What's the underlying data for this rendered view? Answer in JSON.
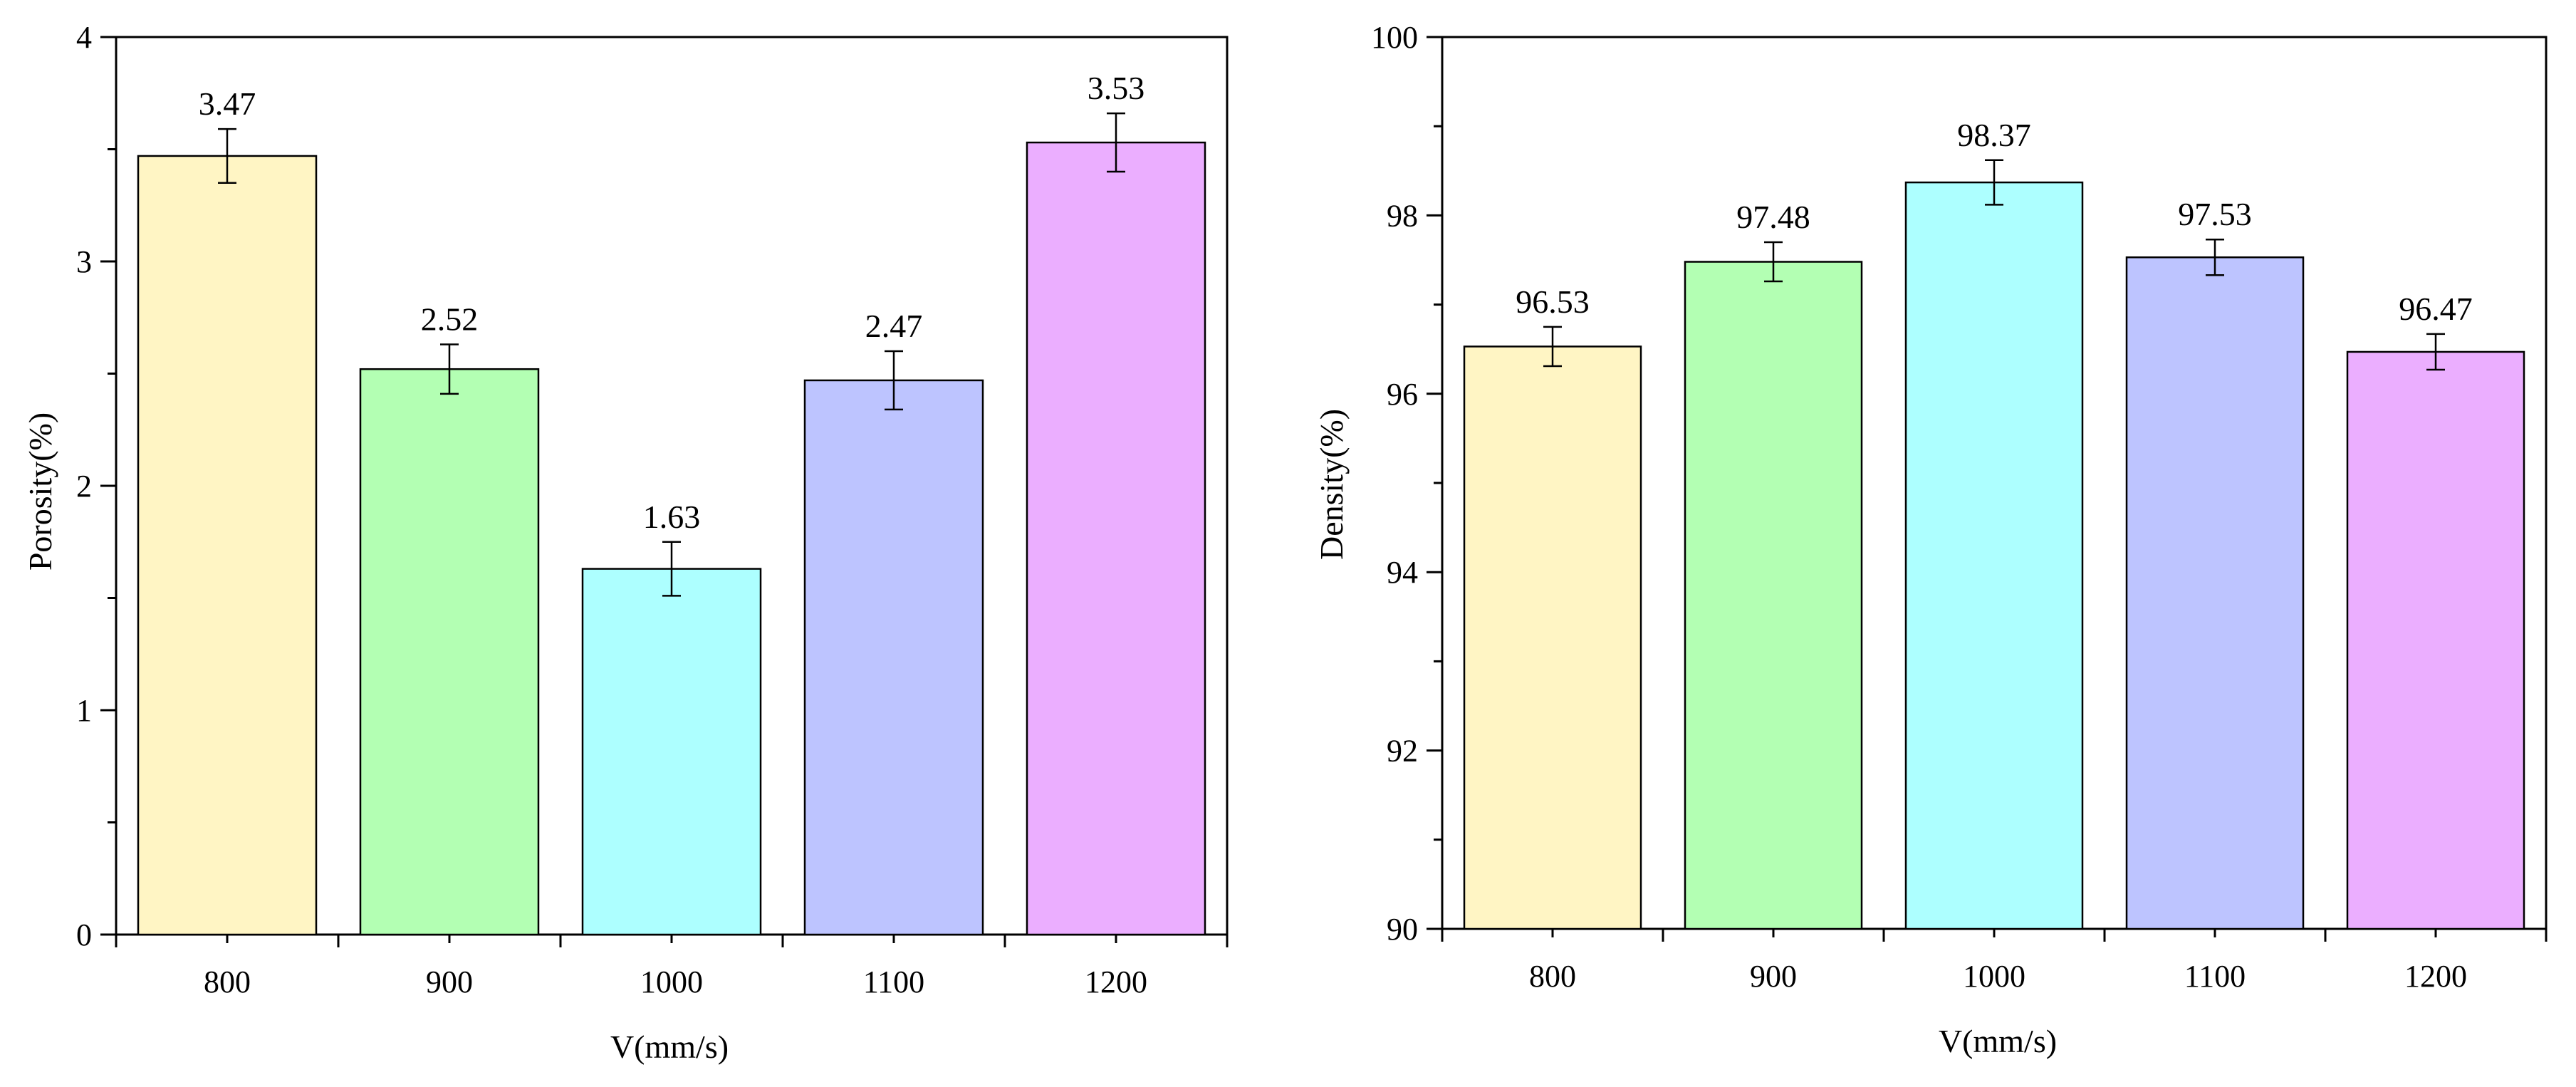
{
  "chart_data": [
    {
      "type": "bar",
      "title": "",
      "xlabel": "V(mm/s)",
      "ylabel": "Porosity(%)",
      "categories": [
        "800",
        "900",
        "1000",
        "1100",
        "1200"
      ],
      "values": [
        3.47,
        2.52,
        1.63,
        2.47,
        3.53
      ],
      "value_labels": [
        "3.47",
        "2.52",
        "1.63",
        "2.47",
        "3.53"
      ],
      "errors": [
        0.12,
        0.11,
        0.12,
        0.13,
        0.13
      ],
      "colors": [
        "#FFF5C4",
        "#B3FFB3",
        "#ADFFFF",
        "#BDC4FF",
        "#EBAEFF"
      ],
      "ylim": [
        0,
        4
      ],
      "major_ticks": [
        0,
        1,
        2,
        3,
        4
      ],
      "tick_labels": [
        "0",
        "1",
        "2",
        "3",
        "4"
      ],
      "minor_step": 0.5,
      "grid": false,
      "legend": "none"
    },
    {
      "type": "bar",
      "title": "",
      "xlabel": "V(mm/s)",
      "ylabel": "Density(%)",
      "categories": [
        "800",
        "900",
        "1000",
        "1100",
        "1200"
      ],
      "values": [
        96.53,
        97.48,
        98.37,
        97.53,
        96.47
      ],
      "value_labels": [
        "96.53",
        "97.48",
        "98.37",
        "97.53",
        "96.47"
      ],
      "errors": [
        0.22,
        0.22,
        0.25,
        0.2,
        0.2
      ],
      "colors": [
        "#FFF5C4",
        "#B3FFB3",
        "#ADFFFF",
        "#BDC4FF",
        "#EBAEFF"
      ],
      "ylim": [
        90,
        100
      ],
      "major_ticks": [
        90,
        92,
        94,
        96,
        98,
        100
      ],
      "tick_labels": [
        "90",
        "92",
        "94",
        "96",
        "98",
        "100"
      ],
      "minor_step": 1,
      "grid": false,
      "legend": "none"
    }
  ]
}
